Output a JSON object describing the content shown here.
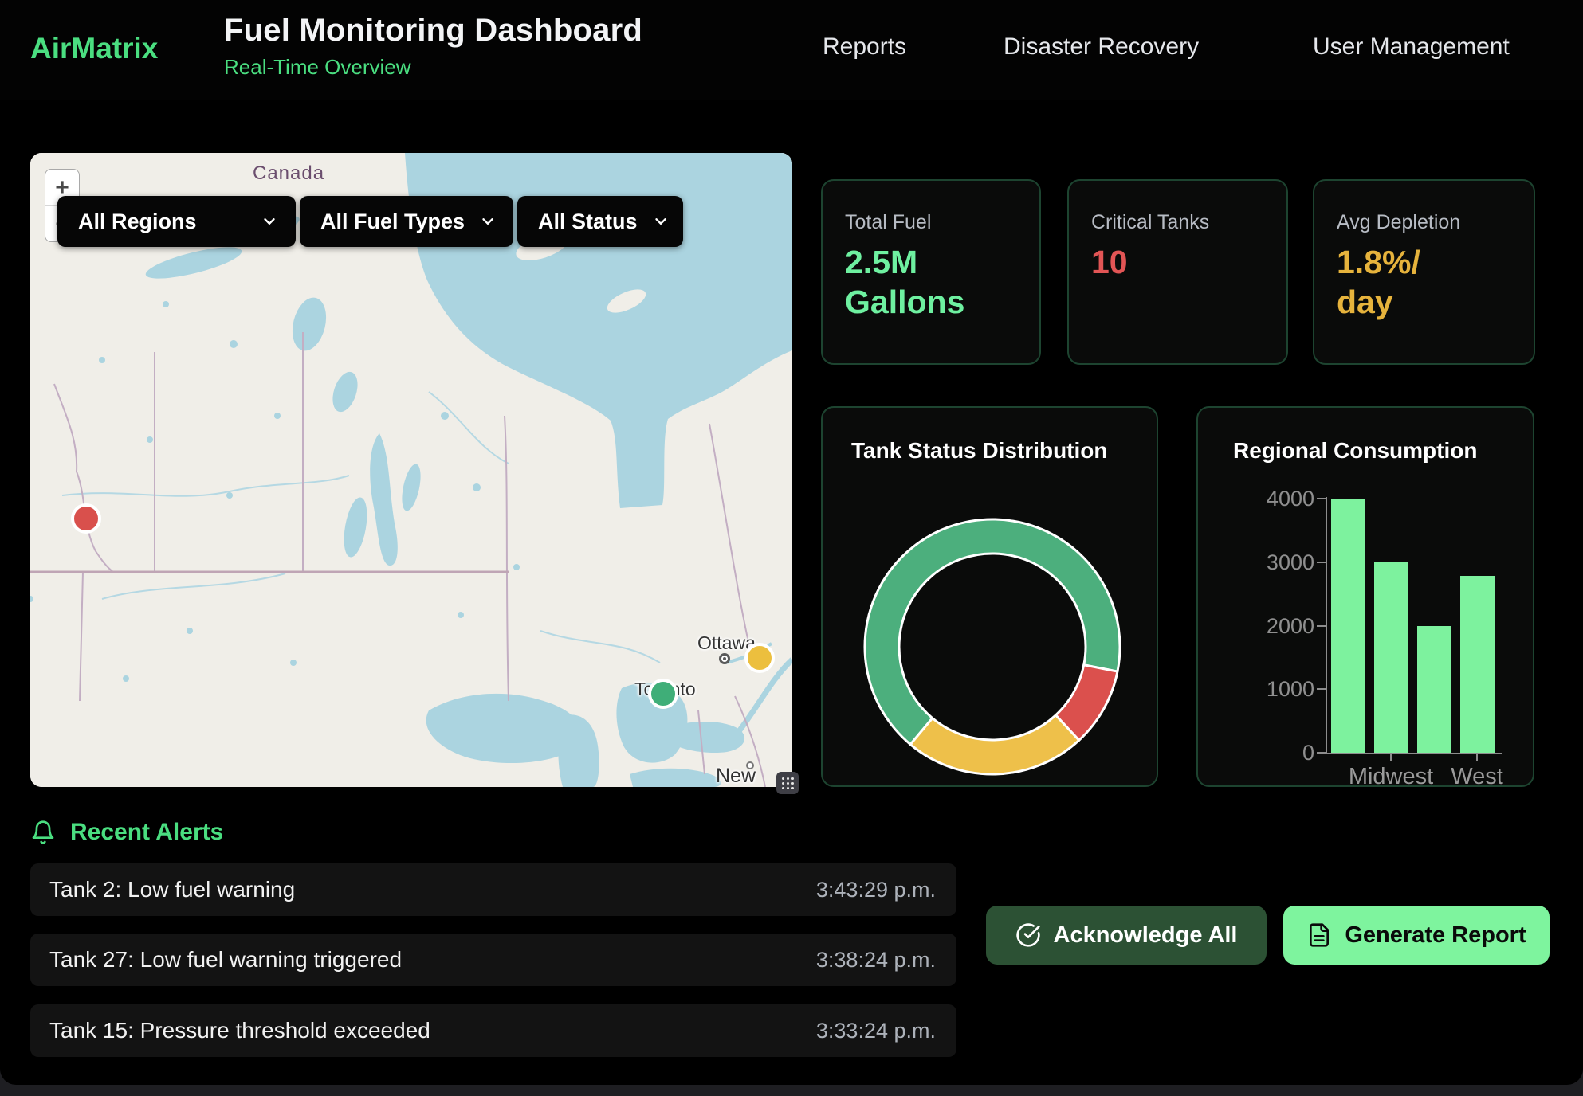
{
  "header": {
    "brand": "AirMatrix",
    "title": "Fuel Monitoring Dashboard",
    "subtitle": "Real-Time Overview",
    "nav": [
      {
        "label": "Reports"
      },
      {
        "label": "Disaster Recovery"
      },
      {
        "label": "User Management"
      }
    ]
  },
  "map": {
    "zoom_in": "+",
    "zoom_out": "−",
    "filters": [
      {
        "label": "All Regions"
      },
      {
        "label": "All Fuel Types"
      },
      {
        "label": "All Status"
      }
    ],
    "labels": {
      "country": "Canada",
      "city_ottawa": "Ottawa",
      "city_toronto": "Toronto",
      "city_newyork": "New York"
    },
    "markers": [
      {
        "status": "critical",
        "color": "#d9504c"
      },
      {
        "status": "warning",
        "color": "#ecbf3e"
      },
      {
        "status": "normal",
        "color": "#3fae78"
      }
    ]
  },
  "stats": [
    {
      "label": "Total Fuel",
      "value": "2.5M\nGallons",
      "color": "#6ef0a0"
    },
    {
      "label": "Critical Tanks",
      "value": "10",
      "color": "#e25555"
    },
    {
      "label": "Avg Depletion",
      "value": "1.8%/\nday",
      "color": "#e6b33c"
    }
  ],
  "chart_data": [
    {
      "type": "pie",
      "subtype": "donut",
      "title": "Tank Status Distribution",
      "segments": [
        {
          "name": "normal",
          "value": 67,
          "color": "#4caf7d"
        },
        {
          "name": "critical",
          "value": 10,
          "color": "#db504d"
        },
        {
          "name": "warning",
          "value": 23,
          "color": "#eec04a"
        }
      ],
      "rotation_deg": 220,
      "legend": "none",
      "border_color": "#ffffff"
    },
    {
      "type": "bar",
      "title": "Regional Consumption",
      "categories": [
        "",
        "Midwest",
        "",
        "West"
      ],
      "values": [
        4000,
        3000,
        2000,
        2780
      ],
      "y_ticks": [
        0,
        1000,
        2000,
        3000,
        4000
      ],
      "ylim": [
        0,
        4000
      ],
      "bar_color": "#7df29e",
      "axis_color": "#8d8d8d",
      "grid": "off",
      "legend": "none"
    }
  ],
  "alerts": {
    "title": "Recent Alerts",
    "items": [
      {
        "message": "Tank 2: Low fuel warning",
        "time": "3:43:29 p.m."
      },
      {
        "message": "Tank 27: Low fuel warning triggered",
        "time": "3:38:24 p.m."
      },
      {
        "message": "Tank 15: Pressure threshold exceeded",
        "time": "3:33:24 p.m."
      }
    ]
  },
  "actions": {
    "acknowledge_all": "Acknowledge All",
    "generate_report": "Generate Report"
  },
  "colors": {
    "accent_green": "#4ade80",
    "value_green": "#6ef0a0",
    "critical_red": "#e25555",
    "warning_yellow": "#e6b33c",
    "card_border": "#1d4430",
    "map_water": "#abd4e0",
    "map_land": "#f0eee8"
  }
}
